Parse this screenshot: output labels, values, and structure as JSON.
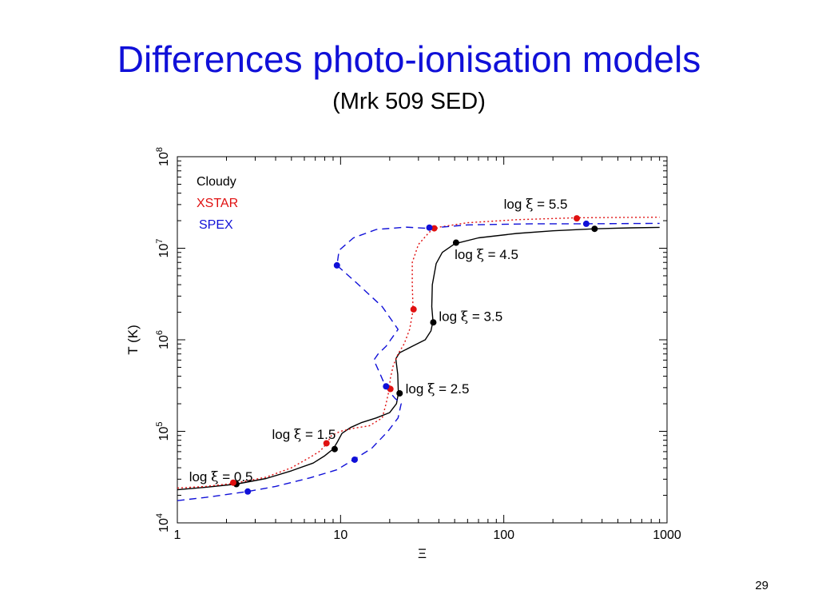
{
  "slide": {
    "title": "Differences photo-ionisation models",
    "subtitle": "(Mrk 509 SED)",
    "page_number": "29"
  },
  "chart_data": {
    "type": "line",
    "title": "",
    "xlabel": "Ξ",
    "ylabel": "T (K)",
    "xscale": "log",
    "yscale": "log",
    "xlim": [
      1,
      1000
    ],
    "ylim": [
      10000,
      100000000
    ],
    "x_ticks": [
      {
        "value": 1,
        "label": "1"
      },
      {
        "value": 10,
        "label": "10"
      },
      {
        "value": 100,
        "label": "100"
      },
      {
        "value": 1000,
        "label": "1000"
      }
    ],
    "y_ticks": [
      {
        "value": 10000,
        "base": "10",
        "exp": "4"
      },
      {
        "value": 100000,
        "base": "10",
        "exp": "5"
      },
      {
        "value": 1000000,
        "base": "10",
        "exp": "6"
      },
      {
        "value": 10000000,
        "base": "10",
        "exp": "7"
      },
      {
        "value": 100000000,
        "base": "10",
        "exp": "8"
      }
    ],
    "legend": {
      "placement": "top-left",
      "entries": [
        {
          "label": "Cloudy",
          "color": "#000000"
        },
        {
          "label": "XSTAR",
          "color": "#e01010"
        },
        {
          "label": "SPEX",
          "color": "#1010d8"
        }
      ]
    },
    "series": [
      {
        "name": "Cloudy",
        "color": "#000000",
        "style": "solid",
        "points": [
          [
            1.0,
            23000
          ],
          [
            1.5,
            24500
          ],
          [
            2.3,
            26500
          ],
          [
            3.5,
            30500
          ],
          [
            5.0,
            37000
          ],
          [
            6.8,
            45000
          ],
          [
            8.0,
            54000
          ],
          [
            9.0,
            64000
          ],
          [
            9.5,
            75000
          ],
          [
            10.2,
            95000
          ],
          [
            11.5,
            110000
          ],
          [
            13.5,
            125000
          ],
          [
            16.5,
            140000
          ],
          [
            20.0,
            160000
          ],
          [
            22.0,
            200000
          ],
          [
            22.6,
            260000
          ],
          [
            22.4,
            420000
          ],
          [
            21.8,
            620000
          ],
          [
            23.0,
            720000
          ],
          [
            27.5,
            850000
          ],
          [
            33.0,
            1000000
          ],
          [
            35.8,
            1250000
          ],
          [
            36.8,
            1600000
          ],
          [
            36.2,
            2300000
          ],
          [
            36.5,
            4000000
          ],
          [
            38.5,
            6800000
          ],
          [
            42.0,
            9000000
          ],
          [
            50.0,
            11200000
          ],
          [
            70.0,
            13000000
          ],
          [
            120.0,
            14500000
          ],
          [
            200.0,
            15500000
          ],
          [
            360.0,
            16300000
          ],
          [
            600.0,
            16700000
          ],
          [
            900.0,
            16900000
          ]
        ]
      },
      {
        "name": "XSTAR",
        "color": "#e01010",
        "style": "dotted",
        "points": [
          [
            1.0,
            24000
          ],
          [
            1.5,
            25000
          ],
          [
            2.2,
            27000
          ],
          [
            3.5,
            31500
          ],
          [
            5.0,
            40000
          ],
          [
            6.5,
            52000
          ],
          [
            7.5,
            61000
          ],
          [
            8.2,
            73000
          ],
          [
            8.8,
            90000
          ],
          [
            10.0,
            100000
          ],
          [
            12.0,
            108000
          ],
          [
            15.0,
            115000
          ],
          [
            18.0,
            140000
          ],
          [
            19.0,
            200000
          ],
          [
            19.8,
            280000
          ],
          [
            20.2,
            380000
          ],
          [
            21.0,
            520000
          ],
          [
            22.5,
            700000
          ],
          [
            24.5,
            900000
          ],
          [
            26.5,
            1300000
          ],
          [
            27.8,
            2100000
          ],
          [
            27.5,
            4000000
          ],
          [
            27.5,
            7000000
          ],
          [
            30.0,
            11000000
          ],
          [
            35.0,
            15000000
          ],
          [
            40.0,
            17000000
          ],
          [
            60.0,
            19000000
          ],
          [
            120.0,
            20500000
          ],
          [
            280.0,
            21500000
          ],
          [
            500.0,
            21700000
          ],
          [
            900.0,
            21800000
          ]
        ]
      },
      {
        "name": "SPEX",
        "color": "#1010d8",
        "style": "dashed",
        "points": [
          [
            1.0,
            17500
          ],
          [
            1.5,
            19000
          ],
          [
            2.7,
            22000
          ],
          [
            4.0,
            25000
          ],
          [
            6.5,
            31000
          ],
          [
            9.5,
            38000
          ],
          [
            12.0,
            49000
          ],
          [
            15.5,
            65000
          ],
          [
            19.5,
            100000
          ],
          [
            22.5,
            140000
          ],
          [
            23.5,
            200000
          ],
          [
            21.5,
            230000
          ],
          [
            19.0,
            300000
          ],
          [
            17.5,
            420000
          ],
          [
            16.0,
            600000
          ],
          [
            17.0,
            700000
          ],
          [
            19.0,
            850000
          ],
          [
            22.5,
            1300000
          ],
          [
            18.0,
            2300000
          ],
          [
            12.5,
            4200000
          ],
          [
            9.5,
            6500000
          ],
          [
            9.8,
            9500000
          ],
          [
            12.0,
            13000000
          ],
          [
            16.5,
            16000000
          ],
          [
            25.0,
            17000000
          ],
          [
            34.0,
            16500000
          ],
          [
            60.0,
            18000000
          ],
          [
            150.0,
            18500000
          ],
          [
            320.0,
            18500000
          ],
          [
            600.0,
            18600000
          ],
          [
            900.0,
            18700000
          ]
        ]
      }
    ],
    "markers": [
      {
        "series": "Cloudy",
        "color": "#000000",
        "points": [
          [
            2.3,
            26500
          ],
          [
            9.2,
            64000
          ],
          [
            23.0,
            260000
          ],
          [
            37.0,
            1550000
          ],
          [
            51.0,
            11500000
          ],
          [
            360.0,
            16300000
          ]
        ]
      },
      {
        "series": "XSTAR",
        "color": "#e01010",
        "points": [
          [
            2.2,
            27500
          ],
          [
            8.2,
            74000
          ],
          [
            20.2,
            290000
          ],
          [
            28.0,
            2150000
          ],
          [
            37.5,
            16500000
          ],
          [
            280.0,
            21200000
          ]
        ]
      },
      {
        "series": "SPEX",
        "color": "#1010d8",
        "points": [
          [
            2.7,
            22000
          ],
          [
            12.2,
            49000
          ],
          [
            19.0,
            310000
          ],
          [
            9.5,
            6500000
          ],
          [
            35.0,
            16800000
          ],
          [
            320.0,
            18500000
          ]
        ]
      }
    ],
    "annotations": [
      {
        "pre": "log ",
        "sym": "ξ",
        "post": " = 0.5",
        "x": 1.18,
        "y": 28500
      },
      {
        "pre": "log ",
        "sym": "ξ",
        "post": " = 1.5",
        "x": 3.8,
        "y": 83000
      },
      {
        "pre": "log ",
        "sym": "ξ",
        "post": " = 2.5",
        "x": 25.0,
        "y": 260000
      },
      {
        "pre": "log ",
        "sym": "ξ",
        "post": " = 3.5",
        "x": 40.0,
        "y": 1600000
      },
      {
        "pre": "log ",
        "sym": "ξ",
        "post": " = 4.5",
        "x": 50.0,
        "y": 7600000
      },
      {
        "pre": "log ",
        "sym": "ξ",
        "post": " = 5.5",
        "x": 100.0,
        "y": 27000000
      }
    ]
  }
}
